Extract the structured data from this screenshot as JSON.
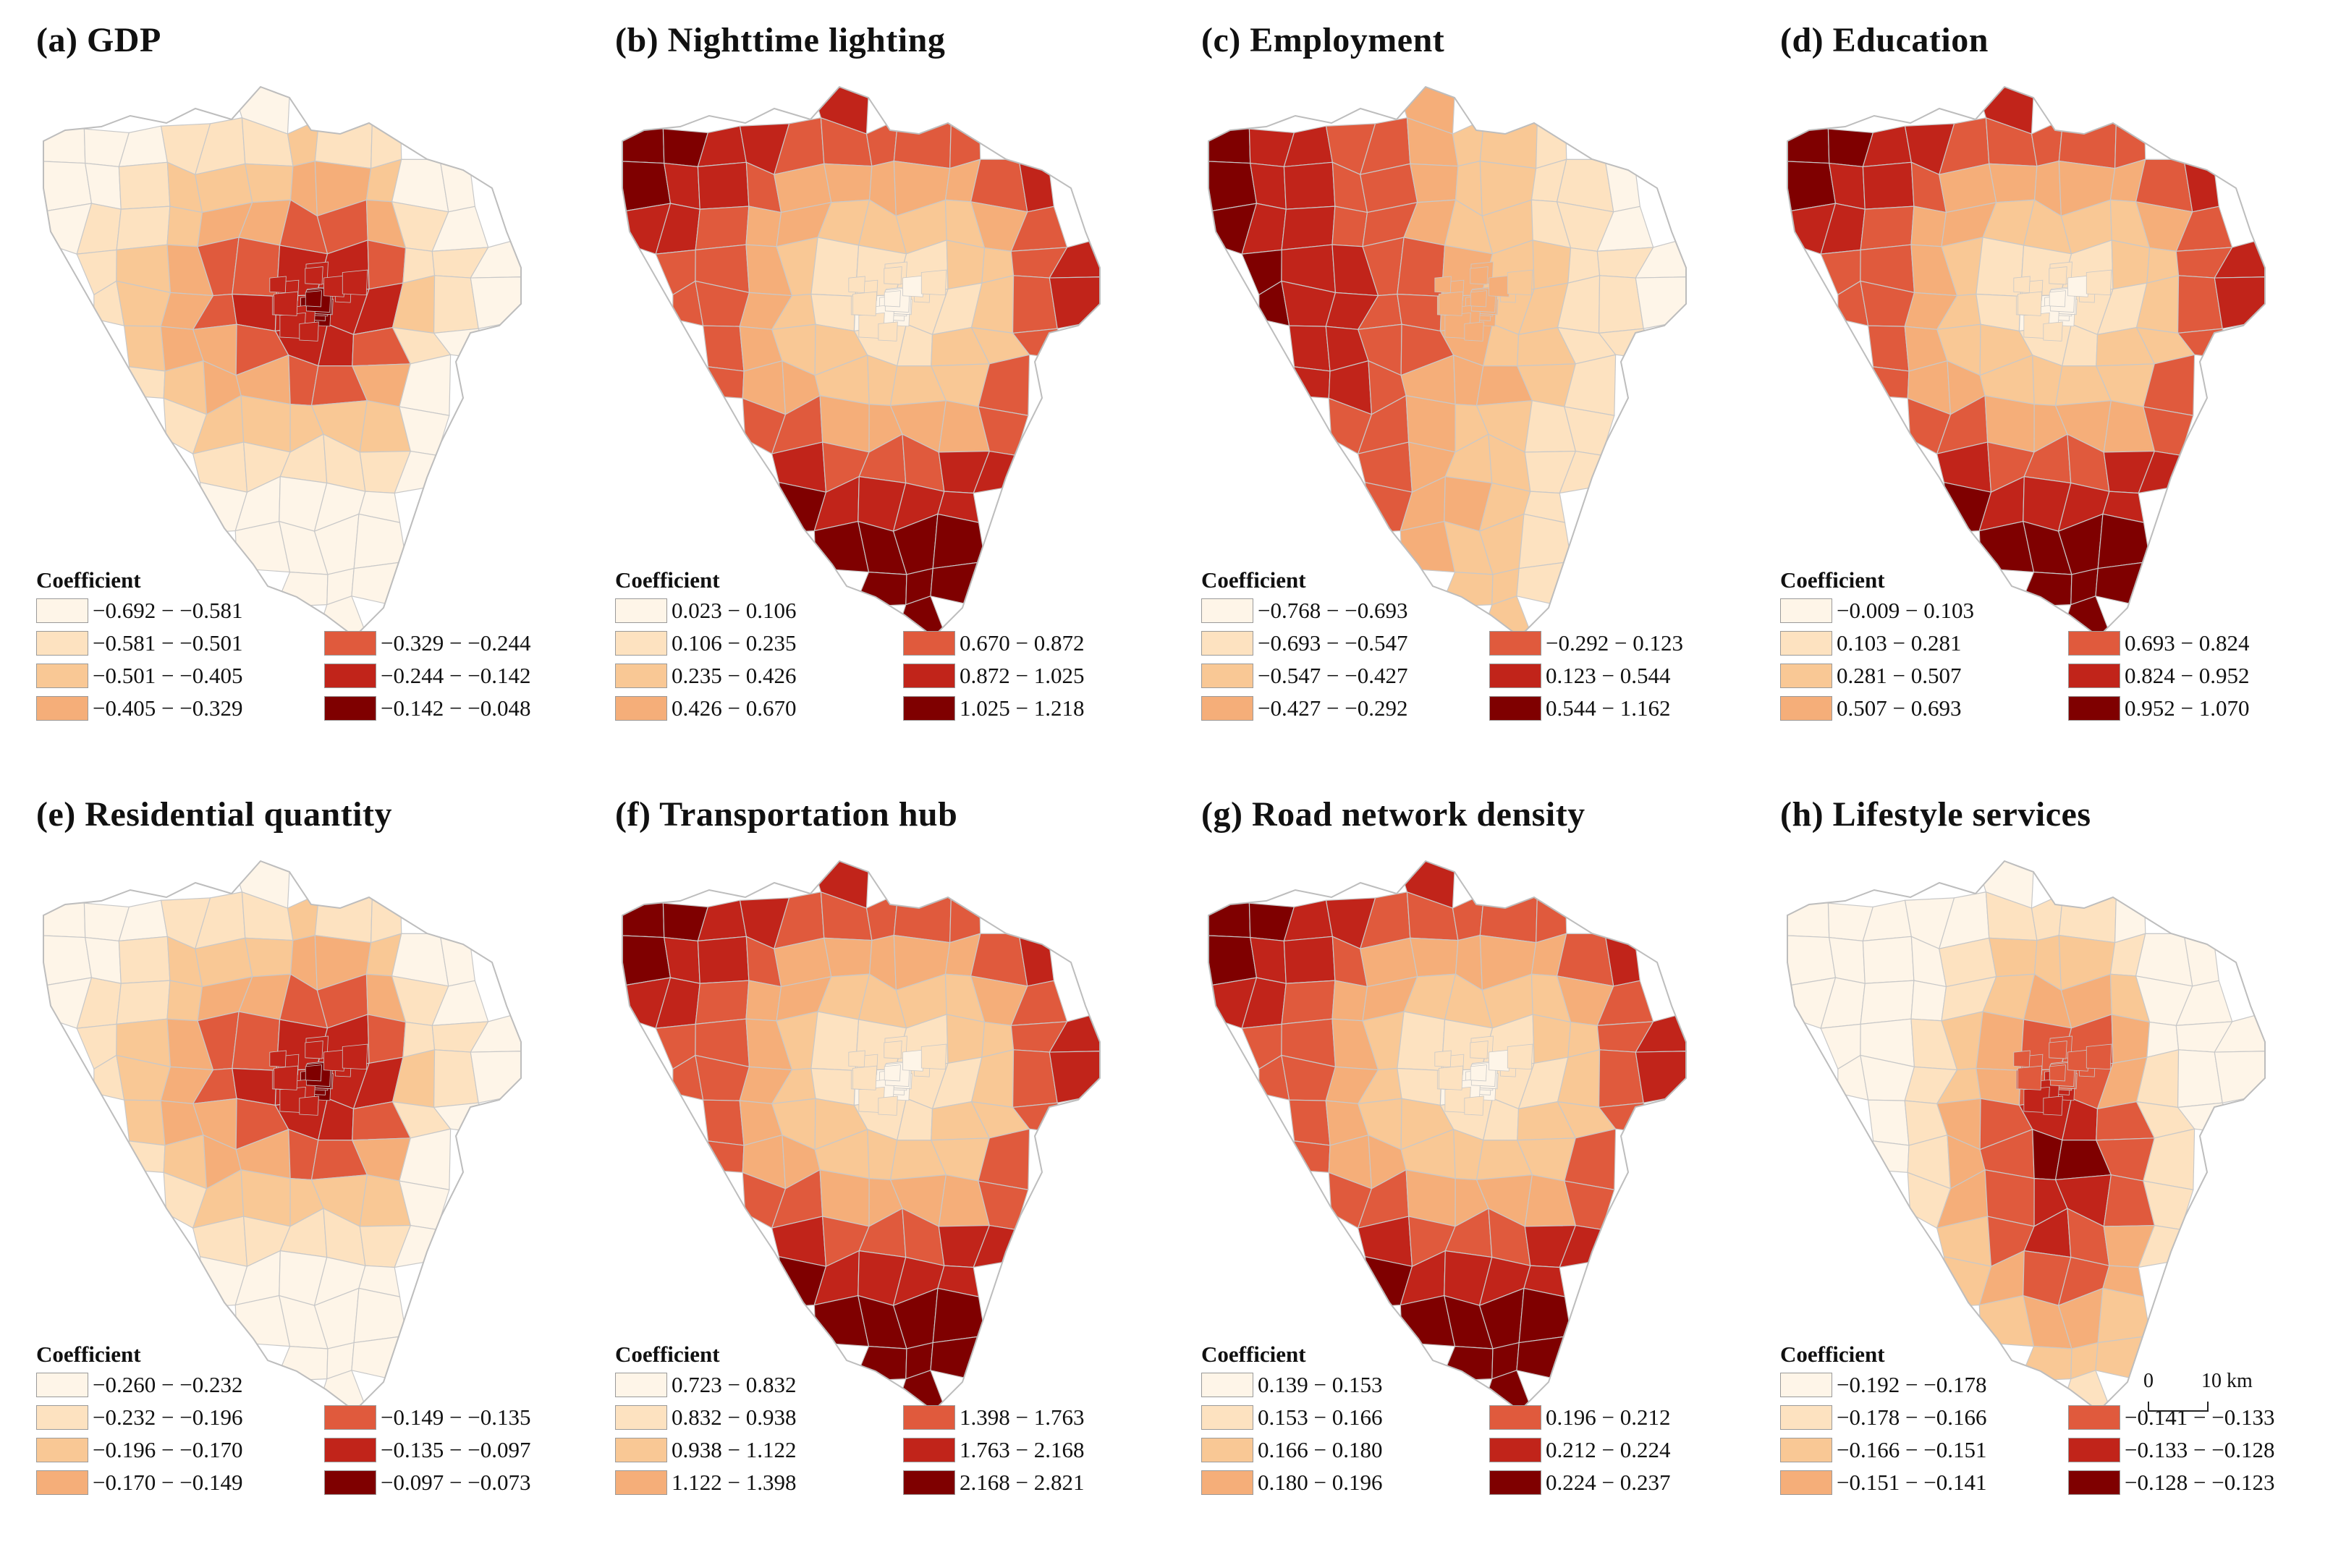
{
  "figure": {
    "legend_title": "Coefficient",
    "scale": {
      "zero": "0",
      "distance": "10 km"
    }
  },
  "panels": [
    {
      "id": "a",
      "title": "(a) GDP",
      "palette": [
        "#fef5e8",
        "#fde2c0",
        "#f9c895",
        "#f5ae79",
        "#e05a3d",
        "#c1241a",
        "#7f0000"
      ],
      "pattern": "center-dark",
      "classes": [
        "−0.692 − −0.581",
        "−0.581 − −0.501",
        "−0.501 − −0.405",
        "−0.405 − −0.329",
        "−0.329 − −0.244",
        "−0.244 − −0.142",
        "−0.142 − −0.048"
      ]
    },
    {
      "id": "b",
      "title": "(b) Nighttime lighting",
      "palette": [
        "#fef5e8",
        "#fde2c0",
        "#f9c895",
        "#f5ae79",
        "#e05a3d",
        "#c1241a",
        "#7f0000"
      ],
      "pattern": "center-light",
      "classes": [
        "0.023 − 0.106",
        "0.106 − 0.235",
        "0.235 − 0.426",
        "0.426 − 0.670",
        "0.670 − 0.872",
        "0.872 − 1.025",
        "1.025 − 1.218"
      ]
    },
    {
      "id": "c",
      "title": "(c) Employment",
      "palette": [
        "#fef5e8",
        "#fde2c0",
        "#f9c895",
        "#f5ae79",
        "#e05a3d",
        "#c1241a",
        "#7f0000"
      ],
      "pattern": "west-dark",
      "classes": [
        "−0.768 − −0.693",
        "−0.693 − −0.547",
        "−0.547 − −0.427",
        "−0.427 − −0.292",
        "−0.292 − 0.123",
        "0.123 − 0.544",
        "0.544 − 1.162"
      ]
    },
    {
      "id": "d",
      "title": "(d) Education",
      "palette": [
        "#fef5e8",
        "#fde2c0",
        "#f9c895",
        "#f5ae79",
        "#e05a3d",
        "#c1241a",
        "#7f0000"
      ],
      "pattern": "center-light",
      "classes": [
        "−0.009 − 0.103",
        "0.103 − 0.281",
        "0.281 − 0.507",
        "0.507 − 0.693",
        "0.693 − 0.824",
        "0.824 − 0.952",
        "0.952 − 1.070"
      ]
    },
    {
      "id": "e",
      "title": "(e) Residential quantity",
      "palette": [
        "#fef5e8",
        "#fde2c0",
        "#f9c895",
        "#f5ae79",
        "#e05a3d",
        "#c1241a",
        "#7f0000"
      ],
      "pattern": "center-dark",
      "classes": [
        "−0.260 − −0.232",
        "−0.232 − −0.196",
        "−0.196 − −0.170",
        "−0.170 − −0.149",
        "−0.149 − −0.135",
        "−0.135 − −0.097",
        "−0.097 − −0.073"
      ]
    },
    {
      "id": "f",
      "title": "(f) Transportation hub",
      "palette": [
        "#fef5e8",
        "#fde2c0",
        "#f9c895",
        "#f5ae79",
        "#e05a3d",
        "#c1241a",
        "#7f0000"
      ],
      "pattern": "center-light",
      "classes": [
        "0.723 − 0.832",
        "0.832 − 0.938",
        "0.938 − 1.122",
        "1.122 − 1.398",
        "1.398 − 1.763",
        "1.763 − 2.168",
        "2.168 − 2.821"
      ]
    },
    {
      "id": "g",
      "title": "(g) Road network density",
      "palette": [
        "#fef5e8",
        "#fde2c0",
        "#f9c895",
        "#f5ae79",
        "#e05a3d",
        "#c1241a",
        "#7f0000"
      ],
      "pattern": "center-light",
      "classes": [
        "0.139 − 0.153",
        "0.153 − 0.166",
        "0.166 − 0.180",
        "0.180 − 0.196",
        "0.196 − 0.212",
        "0.212 − 0.224",
        "0.224 − 0.237"
      ]
    },
    {
      "id": "h",
      "title": "(h) Lifestyle services",
      "palette": [
        "#fef5e8",
        "#fde2c0",
        "#f9c895",
        "#f5ae79",
        "#e05a3d",
        "#c1241a",
        "#7f0000"
      ],
      "pattern": "southcentral-dark",
      "classes": [
        "−0.192 − −0.178",
        "−0.178 − −0.166",
        "−0.166 − −0.151",
        "−0.151 − −0.141",
        "−0.141 − −0.133",
        "−0.133 − −0.128",
        "−0.128 − −0.123"
      ]
    }
  ]
}
